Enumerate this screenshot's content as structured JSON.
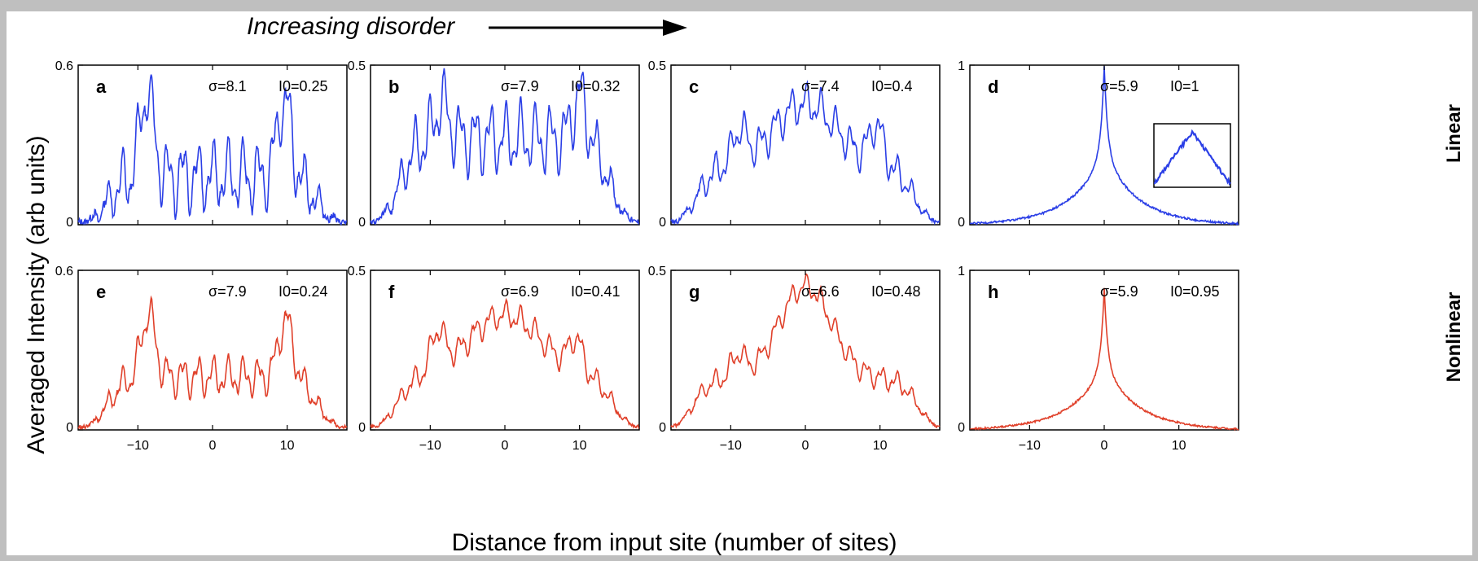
{
  "header": {
    "text": "Increasing disorder"
  },
  "axes": {
    "ylabel": "Averaged Intensity (arb units)",
    "xlabel": "Distance from input site (number of sites)"
  },
  "rows": [
    {
      "label": "Linear",
      "color": "#2b3fe6"
    },
    {
      "label": "Nonlinear",
      "color": "#e0402a"
    }
  ],
  "chart_data": [
    {
      "type": "line",
      "panel": "a",
      "row": "Linear",
      "sigma_label": "σ=8.1",
      "i_label": "I0=0.25",
      "sigma": 8.1,
      "I0": 0.25,
      "xlim": [
        -18,
        18
      ],
      "ylim": [
        0,
        0.6
      ],
      "yticks": [
        0,
        0.6
      ],
      "xticks": [
        -10,
        0,
        10
      ],
      "features": {
        "edge": 14,
        "edgeVal": 0.02,
        "bg": 0.18,
        "outer": [
          {
            "x": -8.8,
            "h": 0.5
          },
          {
            "x": 9.6,
            "h": 0.47
          }
        ],
        "center": null,
        "osc": 0.11
      }
    },
    {
      "type": "line",
      "panel": "b",
      "row": "Linear",
      "sigma_label": "σ=7.9",
      "i_label": "I0=0.32",
      "sigma": 7.9,
      "I0": 0.32,
      "xlim": [
        -18,
        18
      ],
      "ylim": [
        0,
        0.5
      ],
      "yticks": [
        0,
        0.5
      ],
      "xticks": [
        -10,
        0,
        10
      ],
      "features": {
        "edge": 14,
        "edgeVal": 0.02,
        "bg": 0.27,
        "outer": [
          {
            "x": -8.5,
            "h": 0.38
          },
          {
            "x": 10,
            "h": 0.41
          }
        ],
        "center": null,
        "osc": 0.09
      }
    },
    {
      "type": "line",
      "panel": "c",
      "row": "Linear",
      "sigma_label": "σ=7.4",
      "i_label": "I0=0.4",
      "sigma": 7.4,
      "I0": 0.4,
      "xlim": [
        -18,
        18
      ],
      "ylim": [
        0,
        0.5
      ],
      "yticks": [
        0,
        0.5
      ],
      "xticks": [
        -10,
        0,
        10
      ],
      "features": {
        "edge": 14.5,
        "edgeVal": 0.02,
        "bg": 0.18,
        "outer": [
          {
            "x": -8.8,
            "h": 0.28
          },
          {
            "x": 9.5,
            "h": 0.3
          }
        ],
        "center": {
          "h": 0.38,
          "w": 6
        },
        "osc": 0.05
      }
    },
    {
      "type": "line",
      "panel": "d",
      "row": "Linear",
      "sigma_label": "σ=5.9",
      "i_label": "I0=1",
      "sigma": 5.9,
      "I0": 1,
      "xlim": [
        -18,
        18
      ],
      "ylim": [
        0,
        1
      ],
      "yticks": [
        0,
        1
      ],
      "xticks": [
        -10,
        0,
        10
      ],
      "inset": true,
      "features": {
        "edge": 22,
        "edgeVal": 0.02,
        "bg": 0,
        "outer": [],
        "center": {
          "h": 0.98,
          "w": 0,
          "exp": true
        },
        "osc": 0.02
      }
    },
    {
      "type": "line",
      "panel": "e",
      "row": "Nonlinear",
      "sigma_label": "σ=7.9",
      "i_label": "I0=0.24",
      "sigma": 7.9,
      "I0": 0.24,
      "xlim": [
        -18,
        18
      ],
      "ylim": [
        0,
        0.6
      ],
      "yticks": [
        0,
        0.6
      ],
      "xticks": [
        -10,
        0,
        10
      ],
      "features": {
        "edge": 14,
        "edgeVal": 0.02,
        "bg": 0.2,
        "outer": [
          {
            "x": -8.6,
            "h": 0.44
          },
          {
            "x": 9.8,
            "h": 0.42
          }
        ],
        "center": null,
        "osc": 0.06
      }
    },
    {
      "type": "line",
      "panel": "f",
      "row": "Nonlinear",
      "sigma_label": "σ=6.9",
      "i_label": "I0=0.41",
      "sigma": 6.9,
      "I0": 0.41,
      "xlim": [
        -18,
        18
      ],
      "ylim": [
        0,
        0.5
      ],
      "yticks": [
        0,
        0.5
      ],
      "xticks": [
        -10,
        0,
        10
      ],
      "features": {
        "edge": 14.5,
        "edgeVal": 0.02,
        "bg": 0.16,
        "outer": [
          {
            "x": -9,
            "h": 0.28
          },
          {
            "x": 9.5,
            "h": 0.26
          }
        ],
        "center": {
          "h": 0.36,
          "w": 7
        },
        "osc": 0.035
      }
    },
    {
      "type": "line",
      "panel": "g",
      "row": "Nonlinear",
      "sigma_label": "σ=6.6",
      "i_label": "I0=0.48",
      "sigma": 6.6,
      "I0": 0.48,
      "xlim": [
        -18,
        18
      ],
      "ylim": [
        0,
        0.5
      ],
      "yticks": [
        0,
        0.5
      ],
      "xticks": [
        -10,
        0,
        10
      ],
      "features": {
        "edge": 15,
        "edgeVal": 0.02,
        "bg": 0.16,
        "outer": [
          {
            "x": -9,
            "h": 0.23
          },
          {
            "x": 9.3,
            "h": 0.16
          }
        ],
        "center": {
          "h": 0.45,
          "w": 5
        },
        "osc": 0.03
      }
    },
    {
      "type": "line",
      "panel": "h",
      "row": "Nonlinear",
      "sigma_label": "σ=5.9",
      "i_label": "I0=0.95",
      "sigma": 5.9,
      "I0": 0.95,
      "xlim": [
        -18,
        18
      ],
      "ylim": [
        0,
        1
      ],
      "yticks": [
        0,
        1
      ],
      "xticks": [
        -10,
        0,
        10
      ],
      "features": {
        "edge": 22,
        "edgeVal": 0.02,
        "bg": 0,
        "outer": [],
        "center": {
          "h": 0.87,
          "w": 0,
          "exp": true
        },
        "osc": 0.015
      }
    }
  ]
}
